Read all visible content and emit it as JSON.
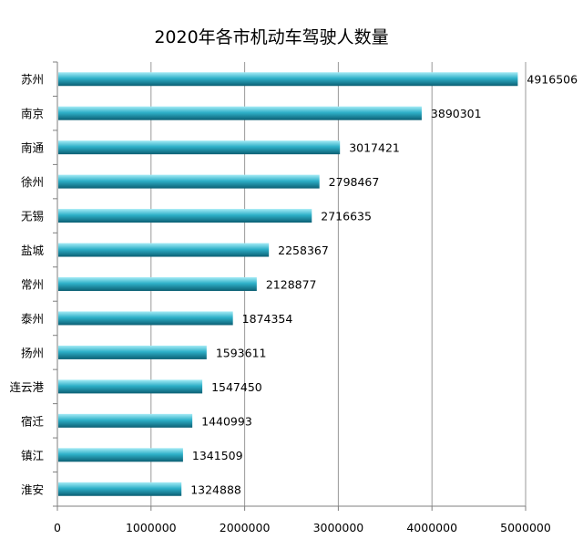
{
  "chart_data": {
    "type": "bar",
    "orientation": "horizontal",
    "title": "2020年各市机动车驾驶人数量",
    "xlabel": "",
    "ylabel": "",
    "categories": [
      "苏州",
      "南京",
      "南通",
      "徐州",
      "无锡",
      "盐城",
      "常州",
      "泰州",
      "扬州",
      "连云港",
      "宿迁",
      "镇江",
      "淮安"
    ],
    "values": [
      4916506,
      3890301,
      3017421,
      2798467,
      2716635,
      2258367,
      2128877,
      1874354,
      1593611,
      1547450,
      1440993,
      1341509,
      1324888
    ],
    "xlim": [
      0,
      5000000
    ],
    "xticks": [
      "0",
      "1000000",
      "2000000",
      "3000000",
      "4000000",
      "5000000"
    ],
    "grid": "vertical",
    "legend": "none",
    "data_labels": true
  },
  "colors": {
    "bar_light": "#a6ecf6",
    "bar_main": "#2eb0c8",
    "bar_dark": "#0c5f73",
    "grid": "#9a9a9a",
    "axis": "#7f7f7f"
  }
}
